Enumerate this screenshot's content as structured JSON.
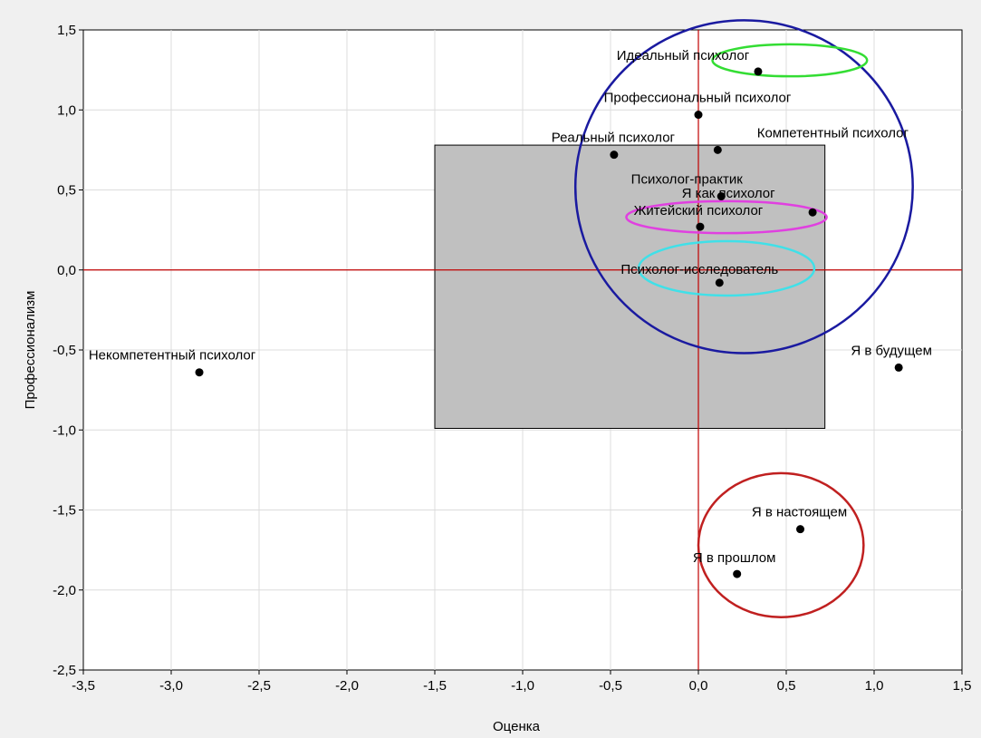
{
  "chart_data": {
    "type": "scatter",
    "xlabel": "Оценка",
    "ylabel": "Профессионализм",
    "xlim": [
      -3.5,
      1.5
    ],
    "ylim": [
      -2.5,
      1.5
    ],
    "xticks": [
      "-3,5",
      "-3,0",
      "-2,5",
      "-2,0",
      "-1,5",
      "-1,0",
      "-0,5",
      "0,0",
      "0,5",
      "1,0",
      "1,5"
    ],
    "xtick_values": [
      -3.5,
      -3.0,
      -2.5,
      -2.0,
      -1.5,
      -1.0,
      -0.5,
      0.0,
      0.5,
      1.0,
      1.5
    ],
    "yticks": [
      "1,5",
      "1,0",
      "0,5",
      "0,0",
      "-0,5",
      "-1,0",
      "-1,5",
      "-2,0",
      "-2,5"
    ],
    "ytick_values": [
      1.5,
      1.0,
      0.5,
      0.0,
      -0.5,
      -1.0,
      -1.5,
      -2.0,
      -2.5
    ],
    "grid": true,
    "points": [
      {
        "label": "Идеальный психолог",
        "x": 0.34,
        "y": 1.24
      },
      {
        "label": "Профессиональный психолог",
        "x": 0.0,
        "y": 0.97
      },
      {
        "label": "Реальный психолог",
        "x": -0.48,
        "y": 0.72
      },
      {
        "label": "Компетентный психолог",
        "x": 0.11,
        "y": 0.75
      },
      {
        "label": "Психолог-практик",
        "x": 0.13,
        "y": 0.46
      },
      {
        "label": "Я как психолог",
        "x": 0.65,
        "y": 0.36
      },
      {
        "label": "Житейский психолог",
        "x": 0.01,
        "y": 0.27
      },
      {
        "label": "Психолог-исследователь",
        "x": 0.12,
        "y": -0.08
      },
      {
        "label": "Некомпетентный психолог",
        "x": -2.84,
        "y": -0.64
      },
      {
        "label": "Я в будущем",
        "x": 1.14,
        "y": -0.61
      },
      {
        "label": "Я в настоящем",
        "x": 0.58,
        "y": -1.62
      },
      {
        "label": "Я в прошлом",
        "x": 0.22,
        "y": -1.9
      }
    ],
    "reference_lines": {
      "x": 0.0,
      "y": 0.0,
      "color": "#c00000"
    },
    "rectangle": {
      "x": [
        -1.5,
        0.72
      ],
      "y": [
        -0.99,
        0.78
      ],
      "color": "#c0c0c0"
    },
    "ellipses": [
      {
        "cx": 0.26,
        "cy": 0.52,
        "rx": 0.96,
        "ry": 1.04,
        "color": "#1a1aa0"
      },
      {
        "cx": 0.52,
        "cy": 1.31,
        "rx": 0.44,
        "ry": 0.1,
        "color": "#33dd33"
      },
      {
        "cx": 0.16,
        "cy": 0.33,
        "rx": 0.57,
        "ry": 0.1,
        "color": "#e040e0"
      },
      {
        "cx": 0.16,
        "cy": 0.01,
        "rx": 0.5,
        "ry": 0.17,
        "color": "#40e0e8"
      },
      {
        "cx": 0.47,
        "cy": -1.72,
        "rx": 0.47,
        "ry": 0.45,
        "color": "#c02020"
      }
    ]
  }
}
